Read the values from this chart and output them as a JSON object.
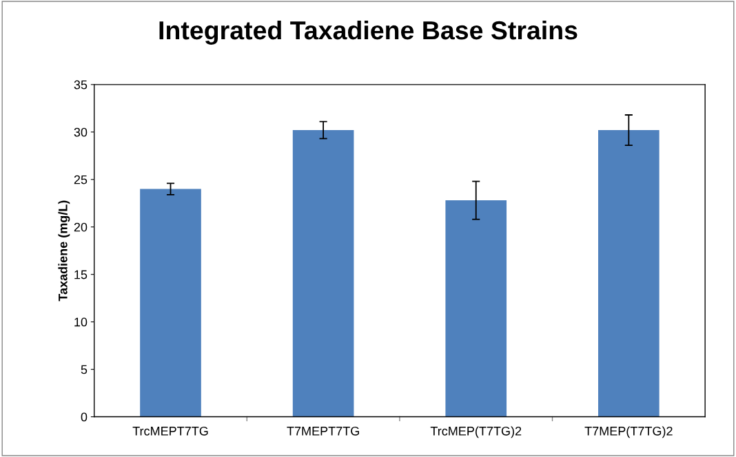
{
  "chart_data": {
    "type": "bar",
    "title": "Integrated Taxadiene Base Strains",
    "ylabel": "Taxadiene (mg/L)",
    "categories": [
      "TrcMEPT7TG",
      "T7MEPT7TG",
      "TrcMEP(T7TG)2",
      "T7MEP(T7TG)2"
    ],
    "values": [
      24.0,
      30.2,
      22.8,
      30.2
    ],
    "errors": [
      0.6,
      0.9,
      2.0,
      1.6
    ],
    "color": "#4f81bd",
    "ylim": [
      0,
      35
    ],
    "yticks": [
      0,
      5,
      10,
      15,
      20,
      25,
      30,
      35
    ],
    "grid": false,
    "legend": false
  }
}
